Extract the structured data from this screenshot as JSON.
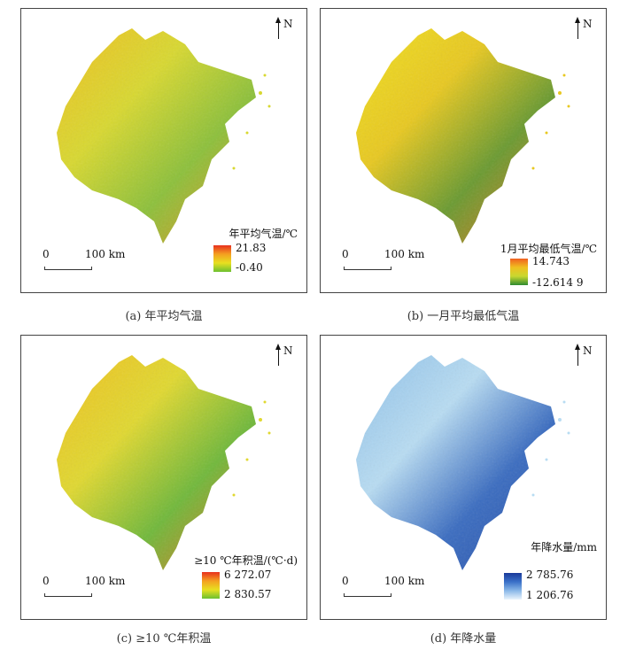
{
  "north_label": "N",
  "scale": {
    "zero": "0",
    "distance": "100 km"
  },
  "panels": [
    {
      "caption": "(a) 年平均气温",
      "legend_title": "年平均气温/℃",
      "max": "21.83",
      "min": "-0.40",
      "colors": [
        "#e8301e",
        "#f4a020",
        "#e8e020",
        "#6cc030"
      ],
      "mapcolors": [
        "#f0c020",
        "#d8d830",
        "#8cc03a",
        "#f09020"
      ]
    },
    {
      "caption": "(b) 一月平均最低气温",
      "legend_title": "1月平均最低气温/℃",
      "max": "14.743",
      "min": "-12.614 9",
      "colors": [
        "#f06020",
        "#f0c020",
        "#c8d830",
        "#2e8a30"
      ],
      "mapcolors": [
        "#f0e020",
        "#e8c820",
        "#6a9a30",
        "#f07820"
      ]
    },
    {
      "caption": "(c) ≥10 ℃年积温",
      "legend_title": "≥10 ℃年积温/(℃·d)",
      "max": "6 272.07",
      "min": "2 830.57",
      "colors": [
        "#e8301e",
        "#f4a020",
        "#e8e020",
        "#6cc030"
      ],
      "mapcolors": [
        "#f0c020",
        "#e0d830",
        "#70b83a",
        "#f07020"
      ]
    },
    {
      "caption": "(d) 年降水量",
      "legend_title": "年降水量/mm",
      "max": "2 785.76",
      "min": "1 206.76",
      "colors": [
        "#1a3a9a",
        "#3a70c8",
        "#8ab8e8",
        "#eaf4fc"
      ],
      "mapcolors": [
        "#8ec0e8",
        "#b8dcf2",
        "#3a6cc0",
        "#2a50a8"
      ]
    }
  ]
}
